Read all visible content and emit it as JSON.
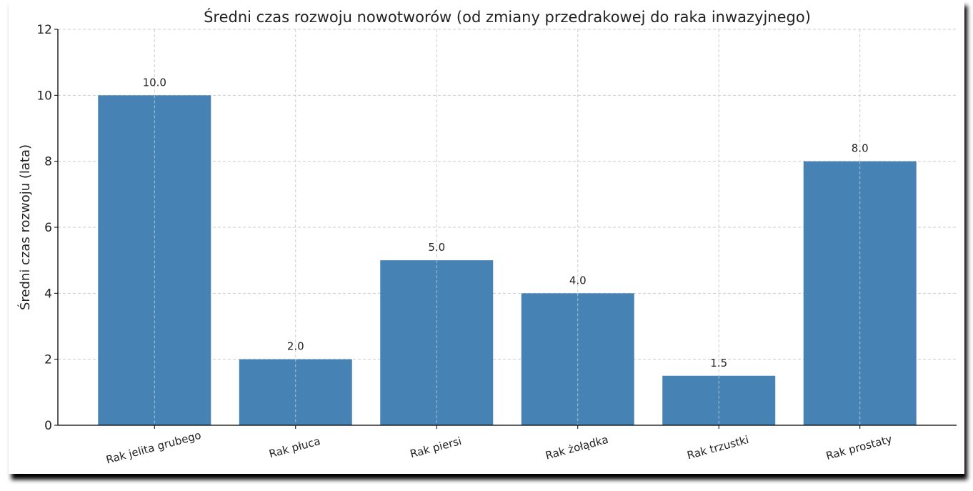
{
  "chart_data": {
    "type": "bar",
    "title": "Średni czas rozwoju nowotworów (od zmiany przedrakowej do raka inwazyjnego)",
    "xlabel": "",
    "ylabel": "Średni czas rozwoju (lata)",
    "categories": [
      "Rak jelita grubego",
      "Rak płuca",
      "Rak piersi",
      "Rak żołądka",
      "Rak trzustki",
      "Rak prostaty"
    ],
    "values": [
      10.0,
      2.0,
      5.0,
      4.0,
      1.5,
      8.0
    ],
    "data_labels": [
      "10.0",
      "2.0",
      "5.0",
      "4.0",
      "1.5",
      "8.0"
    ],
    "ylim": [
      0,
      12
    ],
    "yticks": [
      0,
      2,
      4,
      6,
      8,
      10,
      12
    ],
    "grid": true,
    "bar_color": "#4682b4"
  }
}
